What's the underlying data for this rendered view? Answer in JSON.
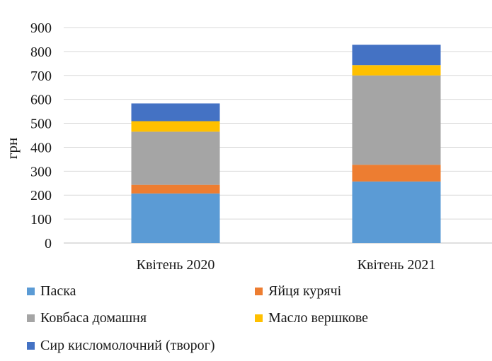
{
  "chart_data": {
    "type": "bar",
    "stacked": true,
    "categories": [
      "Квітень 2020",
      "Квітень 2021"
    ],
    "ylabel": "грн",
    "ylim": [
      0,
      900
    ],
    "yticks": [
      "0",
      "100",
      "200",
      "300",
      "400",
      "500",
      "600",
      "700",
      "800",
      "900"
    ],
    "grid": true,
    "legend_position": "bottom",
    "series": [
      {
        "name": "Паска",
        "color": "#5b9bd5",
        "values": [
          207,
          257
        ]
      },
      {
        "name": "Яйця курячі",
        "color": "#ed7d31",
        "values": [
          36,
          70
        ]
      },
      {
        "name": "Ковбаса домашня",
        "color": "#a5a5a5",
        "values": [
          222,
          373
        ]
      },
      {
        "name": "Масло вершкове",
        "color": "#ffc000",
        "values": [
          44,
          43
        ]
      },
      {
        "name": "Сир кисломолочний (творог)",
        "color": "#4472c4",
        "values": [
          74,
          85
        ]
      }
    ]
  }
}
